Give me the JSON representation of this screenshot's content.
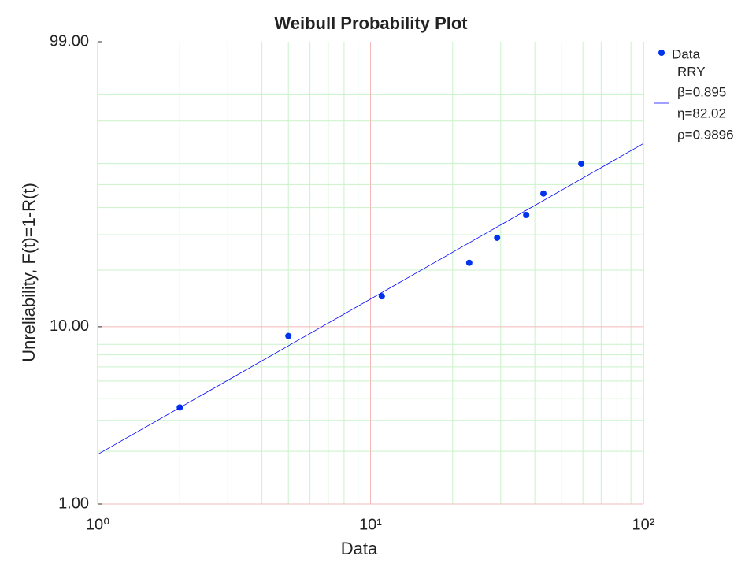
{
  "chart_data": {
    "type": "scatter",
    "title": "Weibull Probability Plot",
    "x_label": "Data",
    "y_label": "Unreliability, F(t)=1-R(t)",
    "xscale": "log",
    "yscale": "weibull",
    "xlim": [
      1,
      100
    ],
    "ylim": [
      1,
      99
    ],
    "xticks": [
      {
        "value": 1,
        "label": "10⁰"
      },
      {
        "value": 10,
        "label": "10¹"
      },
      {
        "value": 100,
        "label": "10²"
      }
    ],
    "yticks": [
      {
        "value": 1,
        "label": "1.00"
      },
      {
        "value": 10,
        "label": "10.00"
      },
      {
        "value": 99,
        "label": "99.00"
      }
    ],
    "xminor": [
      2,
      3,
      4,
      5,
      6,
      7,
      8,
      9,
      20,
      30,
      40,
      50,
      60,
      70,
      80,
      90
    ],
    "yminor": [
      2,
      3,
      4,
      5,
      6,
      7,
      8,
      9,
      20,
      30,
      40,
      50,
      60,
      70,
      80,
      90
    ],
    "grid": true,
    "major_grid_color": "#f3b9b9",
    "minor_grid_color": "#c9f2c9",
    "series": [
      {
        "name": "Data",
        "color": "#0033ee",
        "x": [
          2.0,
          5.0,
          11.0,
          23.0,
          29.1,
          37.2,
          43.0,
          59.2
        ],
        "values": [
          3.55,
          8.9,
          14.6,
          21.8,
          29.0,
          37.1,
          46.0,
          59.9
        ]
      },
      {
        "name": "RRY",
        "type": "line",
        "color": "#0000ff",
        "x": [
          1,
          100
        ],
        "values": [
          1.92,
          69.7
        ]
      }
    ],
    "legend_notes": [
      "β=0.895",
      "η=82.02",
      "ρ=0.9896"
    ],
    "legend_position": "right"
  }
}
